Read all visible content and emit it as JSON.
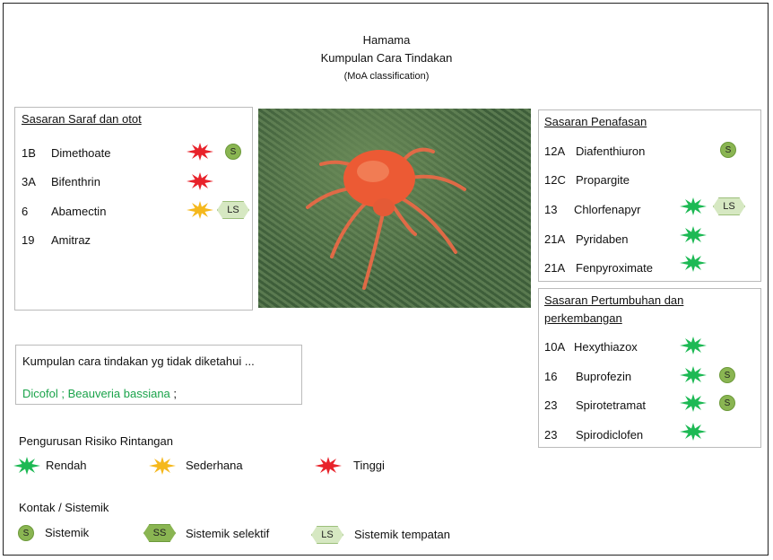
{
  "header": {
    "title": "Hamama",
    "subtitle": "Kumpulan Cara Tindakan",
    "note": "(MoA classification)"
  },
  "colors": {
    "low": "#1db954",
    "medium": "#f5b81c",
    "high": "#e8222a",
    "badge_s": "#8ab552",
    "badge_ls": "#d6e8c2"
  },
  "nerve": {
    "heading": "Sasaran Saraf dan otot",
    "items": [
      {
        "code": "1B",
        "name": "Dimethoate",
        "risk": "high",
        "badge": "S"
      },
      {
        "code": "3A",
        "name": "Bifenthrin",
        "risk": "high",
        "badge": ""
      },
      {
        "code": "6",
        "name": "Abamectin",
        "risk": "medium",
        "badge": "LS"
      },
      {
        "code": "19",
        "name": "Amitraz",
        "risk": "",
        "badge": ""
      }
    ]
  },
  "respiration": {
    "heading": "Sasaran Penafasan",
    "items": [
      {
        "code": "12A",
        "name": "Diafenthiuron",
        "risk": "",
        "badge": "S"
      },
      {
        "code": "12C",
        "name": "Propargite",
        "risk": "",
        "badge": ""
      },
      {
        "code": "13",
        "name": "Chlorfenapyr",
        "risk": "low",
        "badge": "LS"
      },
      {
        "code": "21A",
        "name": "Pyridaben",
        "risk": "low",
        "badge": ""
      },
      {
        "code": "21A",
        "name": "Fenpyroximate",
        "risk": "low",
        "badge": ""
      }
    ]
  },
  "growth": {
    "heading_line1": "Sasaran Pertumbuhan dan",
    "heading_line2": "perkembangan",
    "items": [
      {
        "code": "10A",
        "name": "Hexythiazox",
        "risk": "low",
        "badge": ""
      },
      {
        "code": "16",
        "name": "Buprofezin",
        "risk": "low",
        "badge": "S"
      },
      {
        "code": "23",
        "name": "Spirotetramat",
        "risk": "low",
        "badge": "S"
      },
      {
        "code": "23",
        "name": "Spirodiclofen",
        "risk": "low",
        "badge": ""
      }
    ]
  },
  "unknown": {
    "text": "Kumpulan cara tindakan yg tidak diketahui ...",
    "item1": "Dicofol",
    "sep": " ; ",
    "item2": "Beauveria bassiana",
    "end": " ;"
  },
  "risk_legend": {
    "title": "Pengurusan Risiko Rintangan",
    "low": "Rendah",
    "medium": "Sederhana",
    "high": "Tinggi"
  },
  "contact_legend": {
    "title": "Kontak / Sistemik",
    "s_badge": "S",
    "s_label": "Sistemik",
    "ss_badge": "SS",
    "ss_label": "Sistemik selektif",
    "ls_badge": "LS",
    "ls_label": "Sistemik tempatan"
  }
}
